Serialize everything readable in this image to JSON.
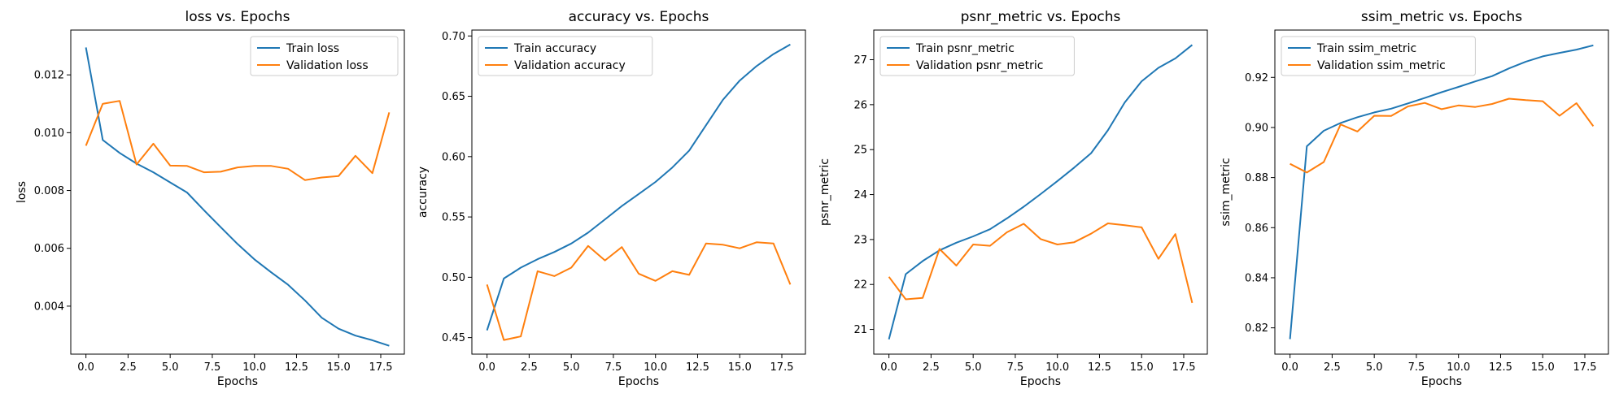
{
  "colors": {
    "train": "#1f77b4",
    "validation": "#ff7f0e"
  },
  "chart_data": [
    {
      "type": "line",
      "title": "loss vs. Epochs",
      "xlabel": "Epochs",
      "ylabel": "loss",
      "x": [
        0,
        1,
        2,
        3,
        4,
        5,
        6,
        7,
        8,
        9,
        10,
        11,
        12,
        13,
        14,
        15,
        16,
        17,
        18
      ],
      "xlim": [
        -0.9,
        18.9
      ],
      "ylim": [
        0.00234,
        0.01355
      ],
      "xticks": [
        0.0,
        2.5,
        5.0,
        7.5,
        10.0,
        12.5,
        15.0,
        17.5
      ],
      "xtick_labels": [
        "0.0",
        "2.5",
        "5.0",
        "7.5",
        "10.0",
        "12.5",
        "15.0",
        "17.5"
      ],
      "yticks": [
        0.004,
        0.006,
        0.008,
        0.01,
        0.012
      ],
      "ytick_labels": [
        "0.004",
        "0.006",
        "0.008",
        "0.010",
        "0.012"
      ],
      "legend": "upper-right",
      "grid": false,
      "series": [
        {
          "name": "Train loss",
          "values": [
            0.01295,
            0.00975,
            0.0093,
            0.00893,
            0.00863,
            0.00828,
            0.00793,
            0.00732,
            0.00673,
            0.00615,
            0.00562,
            0.00517,
            0.00474,
            0.0042,
            0.0036,
            0.00322,
            0.00298,
            0.00282,
            0.00263
          ]
        },
        {
          "name": "Validation loss",
          "values": [
            0.00955,
            0.011,
            0.0111,
            0.0089,
            0.00962,
            0.00886,
            0.00885,
            0.00863,
            0.00865,
            0.0088,
            0.00885,
            0.00885,
            0.00875,
            0.00836,
            0.00845,
            0.0085,
            0.0092,
            0.0086,
            0.0107
          ]
        }
      ]
    },
    {
      "type": "line",
      "title": "accuracy vs. Epochs",
      "xlabel": "Epochs",
      "ylabel": "accuracy",
      "x": [
        0,
        1,
        2,
        3,
        4,
        5,
        6,
        7,
        8,
        9,
        10,
        11,
        12,
        13,
        14,
        15,
        16,
        17,
        18
      ],
      "xlim": [
        -0.9,
        18.9
      ],
      "ylim": [
        0.4363,
        0.7049
      ],
      "xticks": [
        0.0,
        2.5,
        5.0,
        7.5,
        10.0,
        12.5,
        15.0,
        17.5
      ],
      "xtick_labels": [
        "0.0",
        "2.5",
        "5.0",
        "7.5",
        "10.0",
        "12.5",
        "15.0",
        "17.5"
      ],
      "yticks": [
        0.45,
        0.5,
        0.55,
        0.6,
        0.65,
        0.7
      ],
      "ytick_labels": [
        "0.45",
        "0.50",
        "0.55",
        "0.60",
        "0.65",
        "0.70"
      ],
      "legend": "upper-left",
      "grid": false,
      "series": [
        {
          "name": "Train accuracy",
          "values": [
            0.456,
            0.499,
            0.508,
            0.515,
            0.521,
            0.528,
            0.537,
            0.548,
            0.559,
            0.569,
            0.579,
            0.591,
            0.605,
            0.626,
            0.647,
            0.663,
            0.675,
            0.685,
            0.693
          ]
        },
        {
          "name": "Validation accuracy",
          "values": [
            0.494,
            0.448,
            0.451,
            0.505,
            0.501,
            0.508,
            0.526,
            0.514,
            0.525,
            0.503,
            0.497,
            0.505,
            0.502,
            0.528,
            0.527,
            0.524,
            0.529,
            0.528,
            0.494
          ]
        }
      ]
    },
    {
      "type": "line",
      "title": "psnr_metric vs. Epochs",
      "xlabel": "Epochs",
      "ylabel": "psnr_metric",
      "x": [
        0,
        1,
        2,
        3,
        4,
        5,
        6,
        7,
        8,
        9,
        10,
        11,
        12,
        13,
        14,
        15,
        16,
        17,
        18
      ],
      "xlim": [
        -0.9,
        18.9
      ],
      "ylim": [
        20.45,
        27.66
      ],
      "xticks": [
        0.0,
        2.5,
        5.0,
        7.5,
        10.0,
        12.5,
        15.0,
        17.5
      ],
      "xtick_labels": [
        "0.0",
        "2.5",
        "5.0",
        "7.5",
        "10.0",
        "12.5",
        "15.0",
        "17.5"
      ],
      "yticks": [
        21,
        22,
        23,
        24,
        25,
        26,
        27
      ],
      "ytick_labels": [
        "21",
        "22",
        "23",
        "24",
        "25",
        "26",
        "27"
      ],
      "legend": "upper-left",
      "grid": false,
      "series": [
        {
          "name": "Train psnr_metric",
          "values": [
            20.78,
            22.23,
            22.52,
            22.76,
            22.93,
            23.07,
            23.23,
            23.47,
            23.73,
            24.01,
            24.3,
            24.6,
            24.92,
            25.43,
            26.05,
            26.52,
            26.82,
            27.03,
            27.33
          ]
        },
        {
          "name": "Validation psnr_metric",
          "values": [
            22.17,
            21.67,
            21.7,
            22.79,
            22.42,
            22.89,
            22.86,
            23.16,
            23.35,
            23.01,
            22.89,
            22.94,
            23.13,
            23.36,
            23.32,
            23.27,
            22.57,
            23.12,
            21.59
          ]
        }
      ]
    },
    {
      "type": "line",
      "title": "ssim_metric vs. Epochs",
      "xlabel": "Epochs",
      "ylabel": "ssim_metric",
      "x": [
        0,
        1,
        2,
        3,
        4,
        5,
        6,
        7,
        8,
        9,
        10,
        11,
        12,
        13,
        14,
        15,
        16,
        17,
        18
      ],
      "xlim": [
        -0.9,
        18.9
      ],
      "ylim": [
        0.8095,
        0.9389
      ],
      "xticks": [
        0.0,
        2.5,
        5.0,
        7.5,
        10.0,
        12.5,
        15.0,
        17.5
      ],
      "xtick_labels": [
        "0.0",
        "2.5",
        "5.0",
        "7.5",
        "10.0",
        "12.5",
        "15.0",
        "17.5"
      ],
      "yticks": [
        0.82,
        0.84,
        0.86,
        0.88,
        0.9,
        0.92
      ],
      "ytick_labels": [
        "0.82",
        "0.84",
        "0.86",
        "0.88",
        "0.90",
        "0.92"
      ],
      "legend": "upper-left",
      "grid": false,
      "series": [
        {
          "name": "Train ssim_metric",
          "values": [
            0.8155,
            0.8925,
            0.8987,
            0.9018,
            0.9041,
            0.906,
            0.9075,
            0.9096,
            0.9118,
            0.9141,
            0.9162,
            0.9184,
            0.9205,
            0.9236,
            0.9263,
            0.9284,
            0.9298,
            0.9311,
            0.9328
          ]
        },
        {
          "name": "Validation ssim_metric",
          "values": [
            0.8855,
            0.882,
            0.8862,
            0.9012,
            0.8984,
            0.9047,
            0.9046,
            0.9084,
            0.9098,
            0.9073,
            0.9088,
            0.9082,
            0.9094,
            0.9115,
            0.9109,
            0.9105,
            0.9047,
            0.9097,
            0.9005
          ]
        }
      ]
    }
  ]
}
